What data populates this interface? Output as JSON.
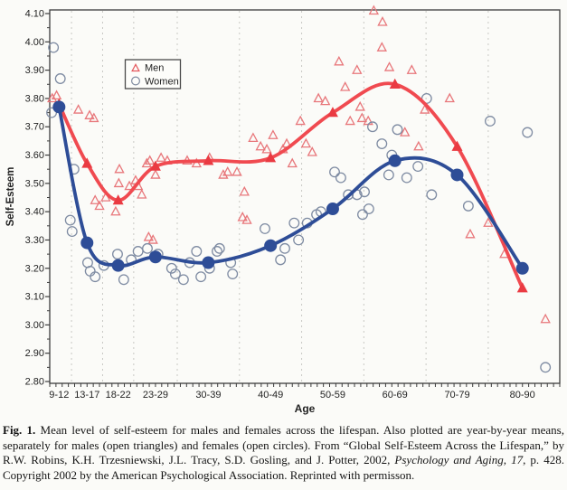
{
  "figure": {
    "caption_segments": [
      {
        "text": "Fig. 1.",
        "bold": true,
        "italic": false
      },
      {
        "text": "  Mean level of self-esteem for males and females across the lifespan. Also plotted are year-by-year means, separately for males (open triangles) and females (open circles). From “Global Self-Esteem Across the Lifespan,” by R.W. Robins, K.H. Trzesniewski, J.L. Tracy, S.D. Gosling, and J. Potter, 2002, ",
        "bold": false,
        "italic": false
      },
      {
        "text": "Psychology and Aging, 17",
        "bold": false,
        "italic": true
      },
      {
        "text": ", p. 428. Copyright 2002 by the American Psychological Association. Reprinted with permisson.",
        "bold": false,
        "italic": false
      }
    ]
  },
  "chart_data": {
    "type": "line+scatter",
    "title": "",
    "xlabel": "Age",
    "ylabel": "Self-Esteem",
    "ylim": [
      2.8,
      4.1
    ],
    "ytick_major": 0.1,
    "ytick_minor": 0.05,
    "age_range": [
      9,
      91
    ],
    "grid": "vertical-dashed",
    "gridline_ages": [
      12.5,
      17.5,
      22.5,
      29.5,
      39.5,
      49.5,
      59.5,
      69.5,
      79.5
    ],
    "categories": [
      "9-12",
      "13-17",
      "18-22",
      "23-29",
      "30-39",
      "40-49",
      "50-59",
      "60-69",
      "70-79",
      "80-90"
    ],
    "category_center_ages": [
      10.5,
      15,
      20,
      26,
      34.5,
      44.5,
      54.5,
      64.5,
      74.5,
      85
    ],
    "legend": {
      "position": "upper-left-inset",
      "entries": [
        {
          "label": "Men",
          "marker": "triangle-open",
          "color": "#e4575c"
        },
        {
          "label": "Women",
          "marker": "circle-open",
          "color": "#808ca0"
        }
      ]
    },
    "series": [
      {
        "name": "Men (group means)",
        "marker": "triangle-filled",
        "line_color": "#f04a50",
        "marker_color": "#ea3a42",
        "values": [
          3.78,
          3.57,
          3.44,
          3.56,
          3.58,
          3.59,
          3.75,
          3.85,
          3.63,
          3.13
        ]
      },
      {
        "name": "Women (group means)",
        "marker": "circle-filled",
        "line_color": "#2e4d97",
        "marker_color": "#2e4d97",
        "values": [
          3.77,
          3.29,
          3.21,
          3.24,
          3.22,
          3.28,
          3.41,
          3.58,
          3.53,
          3.2
        ]
      }
    ],
    "scatter": [
      {
        "name": "Men year-by-year means",
        "marker": "triangle-open",
        "color": "#e8777b",
        "points": [
          [
            9.4,
            3.8
          ],
          [
            10.1,
            3.81
          ],
          [
            13.6,
            3.76
          ],
          [
            15.4,
            3.74
          ],
          [
            16.1,
            3.73
          ],
          [
            16.3,
            3.44
          ],
          [
            17.0,
            3.42
          ],
          [
            18.0,
            3.45
          ],
          [
            19.6,
            3.4
          ],
          [
            20.1,
            3.5
          ],
          [
            20.2,
            3.55
          ],
          [
            21.8,
            3.49
          ],
          [
            22.8,
            3.51
          ],
          [
            23.2,
            3.49
          ],
          [
            23.8,
            3.46
          ],
          [
            24.6,
            3.57
          ],
          [
            24.9,
            3.31
          ],
          [
            25.6,
            3.3
          ],
          [
            25.1,
            3.58
          ],
          [
            26.0,
            3.53
          ],
          [
            26.9,
            3.59
          ],
          [
            27.9,
            3.58
          ],
          [
            31.1,
            3.58
          ],
          [
            32.6,
            3.57
          ],
          [
            34.7,
            3.59
          ],
          [
            36.9,
            3.53
          ],
          [
            37.6,
            3.54
          ],
          [
            39.1,
            3.54
          ],
          [
            40.0,
            3.38
          ],
          [
            40.7,
            3.37
          ],
          [
            40.3,
            3.47
          ],
          [
            41.7,
            3.66
          ],
          [
            42.9,
            3.63
          ],
          [
            43.9,
            3.62
          ],
          [
            44.9,
            3.67
          ],
          [
            46.5,
            3.62
          ],
          [
            47.1,
            3.64
          ],
          [
            48.0,
            3.57
          ],
          [
            49.3,
            3.72
          ],
          [
            50.2,
            3.64
          ],
          [
            51.2,
            3.61
          ],
          [
            52.2,
            3.8
          ],
          [
            53.3,
            3.79
          ],
          [
            55.5,
            3.93
          ],
          [
            56.5,
            3.84
          ],
          [
            57.3,
            3.72
          ],
          [
            58.4,
            3.9
          ],
          [
            58.9,
            3.77
          ],
          [
            59.2,
            3.73
          ],
          [
            60.2,
            3.72
          ],
          [
            61.1,
            4.11
          ],
          [
            62.5,
            4.07
          ],
          [
            62.4,
            3.98
          ],
          [
            63.6,
            3.91
          ],
          [
            67.2,
            3.9
          ],
          [
            66.1,
            3.68
          ],
          [
            68.3,
            3.63
          ],
          [
            69.3,
            3.76
          ],
          [
            73.3,
            3.8
          ],
          [
            76.6,
            3.32
          ],
          [
            79.5,
            3.36
          ],
          [
            82.1,
            3.25
          ],
          [
            88.7,
            3.02
          ]
        ]
      },
      {
        "name": "Women year-by-year means",
        "marker": "circle-open",
        "color": "#7e8ba2",
        "points": [
          [
            9.3,
            3.75
          ],
          [
            9.6,
            3.98
          ],
          [
            10.7,
            3.87
          ],
          [
            12.3,
            3.37
          ],
          [
            12.6,
            3.33
          ],
          [
            12.9,
            3.55
          ],
          [
            15.1,
            3.22
          ],
          [
            15.5,
            3.19
          ],
          [
            16.3,
            3.17
          ],
          [
            17.7,
            3.21
          ],
          [
            19.9,
            3.25
          ],
          [
            20.9,
            3.16
          ],
          [
            22.1,
            3.23
          ],
          [
            23.2,
            3.26
          ],
          [
            24.7,
            3.27
          ],
          [
            26.4,
            3.25
          ],
          [
            28.6,
            3.2
          ],
          [
            29.2,
            3.18
          ],
          [
            30.5,
            3.16
          ],
          [
            31.5,
            3.22
          ],
          [
            33.3,
            3.17
          ],
          [
            32.6,
            3.26
          ],
          [
            34.7,
            3.2
          ],
          [
            35.9,
            3.26
          ],
          [
            36.3,
            3.27
          ],
          [
            38.1,
            3.22
          ],
          [
            38.4,
            3.18
          ],
          [
            43.6,
            3.34
          ],
          [
            46.1,
            3.23
          ],
          [
            46.8,
            3.27
          ],
          [
            48.3,
            3.36
          ],
          [
            49.0,
            3.3
          ],
          [
            50.4,
            3.36
          ],
          [
            51.9,
            3.39
          ],
          [
            52.6,
            3.4
          ],
          [
            54.8,
            3.54
          ],
          [
            55.8,
            3.52
          ],
          [
            57.0,
            3.46
          ],
          [
            58.4,
            3.46
          ],
          [
            59.3,
            3.39
          ],
          [
            59.6,
            3.47
          ],
          [
            60.3,
            3.41
          ],
          [
            60.9,
            3.7
          ],
          [
            62.4,
            3.64
          ],
          [
            63.5,
            3.53
          ],
          [
            64.0,
            3.6
          ],
          [
            64.9,
            3.69
          ],
          [
            66.4,
            3.52
          ],
          [
            68.2,
            3.56
          ],
          [
            69.6,
            3.8
          ],
          [
            70.4,
            3.46
          ],
          [
            76.3,
            3.42
          ],
          [
            79.8,
            3.72
          ],
          [
            85.8,
            3.68
          ],
          [
            88.7,
            2.85
          ]
        ]
      }
    ]
  },
  "colors": {
    "background": "#fbfbf8",
    "frame": "#3c3c3c",
    "grid": "#c9c9c4",
    "men_line": "#f04a50",
    "men_marker": "#ea3a42",
    "men_open": "#e8777b",
    "women_line": "#2e4d97",
    "women_open": "#7e8ba2",
    "text": "#232323"
  }
}
